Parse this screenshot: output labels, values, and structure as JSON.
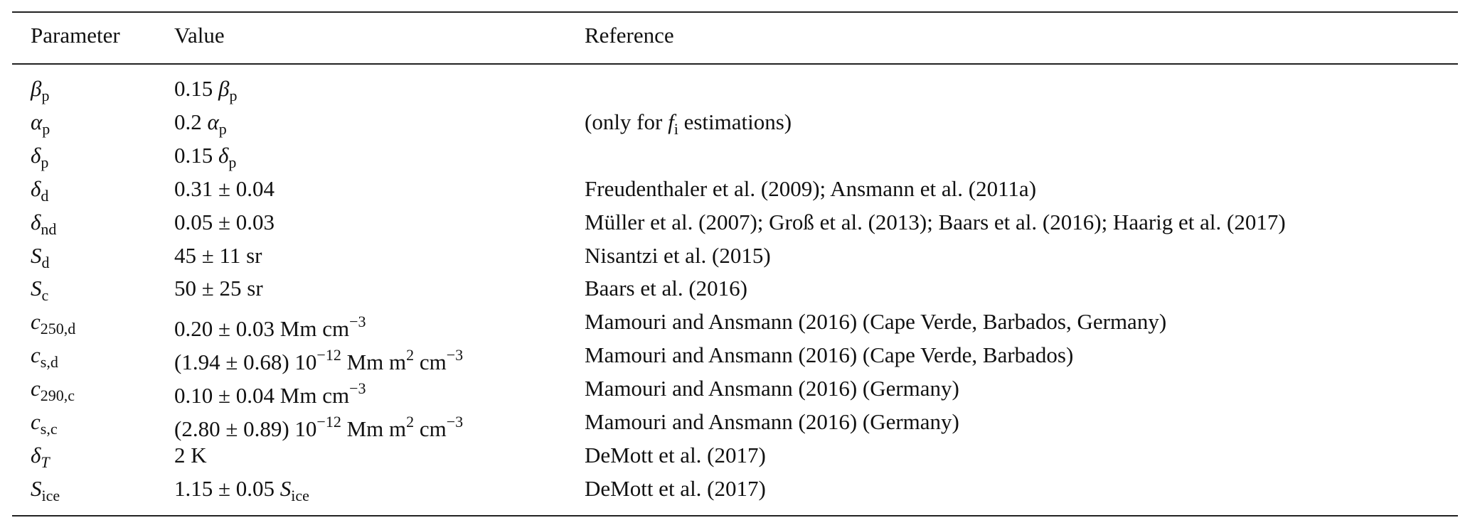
{
  "table": {
    "header": [
      "Parameter",
      "Value",
      "Reference"
    ],
    "rows": [
      [
        [
          {
            "t": "β",
            "s": "i"
          },
          {
            "t": "p",
            "s": "sub"
          }
        ],
        [
          "0.15 ",
          {
            "t": "β",
            "s": "i"
          },
          {
            "t": "p",
            "s": "sub"
          }
        ],
        []
      ],
      [
        [
          {
            "t": "α",
            "s": "i"
          },
          {
            "t": "p",
            "s": "sub"
          }
        ],
        [
          "0.2 ",
          {
            "t": "α",
            "s": "i"
          },
          {
            "t": "p",
            "s": "sub"
          }
        ],
        [
          "(only for ",
          {
            "t": "f",
            "s": "i"
          },
          {
            "t": "i",
            "s": "sub"
          },
          " estimations)"
        ]
      ],
      [
        [
          {
            "t": "δ",
            "s": "i"
          },
          {
            "t": "p",
            "s": "sub"
          }
        ],
        [
          "0.15 ",
          {
            "t": "δ",
            "s": "i"
          },
          {
            "t": "p",
            "s": "sub"
          }
        ],
        []
      ],
      [
        [
          {
            "t": "δ",
            "s": "i"
          },
          {
            "t": "d",
            "s": "sub"
          }
        ],
        [
          "0.31 ± 0.04"
        ],
        [
          "Freudenthaler et al. (2009); Ansmann et al. (2011a)"
        ]
      ],
      [
        [
          {
            "t": "δ",
            "s": "i"
          },
          {
            "t": "nd",
            "s": "sub"
          }
        ],
        [
          "0.05 ± 0.03"
        ],
        [
          "Müller et al. (2007); Groß et al. (2013); Baars et al. (2016); Haarig et al. (2017)"
        ]
      ],
      [
        [
          {
            "t": "S",
            "s": "i"
          },
          {
            "t": "d",
            "s": "sub"
          }
        ],
        [
          "45 ± 11 sr"
        ],
        [
          "Nisantzi et al. (2015)"
        ]
      ],
      [
        [
          {
            "t": "S",
            "s": "i"
          },
          {
            "t": "c",
            "s": "sub"
          }
        ],
        [
          "50 ± 25 sr"
        ],
        [
          "Baars et al. (2016)"
        ]
      ],
      [
        [
          {
            "t": "c",
            "s": "i"
          },
          {
            "t": "250,d",
            "s": "sub"
          }
        ],
        [
          "0.20 ± 0.03 Mm cm",
          {
            "t": "−3",
            "s": "sup"
          }
        ],
        [
          "Mamouri and Ansmann (2016) (Cape Verde, Barbados, Germany)"
        ]
      ],
      [
        [
          {
            "t": "c",
            "s": "i"
          },
          {
            "t": "s,d",
            "s": "sub"
          }
        ],
        [
          "(1.94 ± 0.68) 10",
          {
            "t": "−12",
            "s": "sup"
          },
          " Mm m",
          {
            "t": "2",
            "s": "sup"
          },
          " cm",
          {
            "t": "−3",
            "s": "sup"
          }
        ],
        [
          "Mamouri and Ansmann (2016) (Cape Verde, Barbados)"
        ]
      ],
      [
        [
          {
            "t": "c",
            "s": "i"
          },
          {
            "t": "290,c",
            "s": "sub"
          }
        ],
        [
          "0.10 ± 0.04 Mm cm",
          {
            "t": "−3",
            "s": "sup"
          }
        ],
        [
          "Mamouri and Ansmann (2016) (Germany)"
        ]
      ],
      [
        [
          {
            "t": "c",
            "s": "i"
          },
          {
            "t": "s,c",
            "s": "sub"
          }
        ],
        [
          "(2.80 ± 0.89) 10",
          {
            "t": "−12",
            "s": "sup"
          },
          " Mm m",
          {
            "t": "2",
            "s": "sup"
          },
          " cm",
          {
            "t": "−3",
            "s": "sup"
          }
        ],
        [
          "Mamouri and Ansmann (2016) (Germany)"
        ]
      ],
      [
        [
          {
            "t": "δ",
            "s": "i"
          },
          {
            "t": "T",
            "s": "subi"
          }
        ],
        [
          "2 K"
        ],
        [
          "DeMott et al. (2017)"
        ]
      ],
      [
        [
          {
            "t": "S",
            "s": "i"
          },
          {
            "t": "ice",
            "s": "sub"
          }
        ],
        [
          "1.15 ± 0.05 ",
          {
            "t": "S",
            "s": "i"
          },
          {
            "t": "ice",
            "s": "sub"
          }
        ],
        [
          "DeMott et al. (2017)"
        ]
      ]
    ]
  }
}
